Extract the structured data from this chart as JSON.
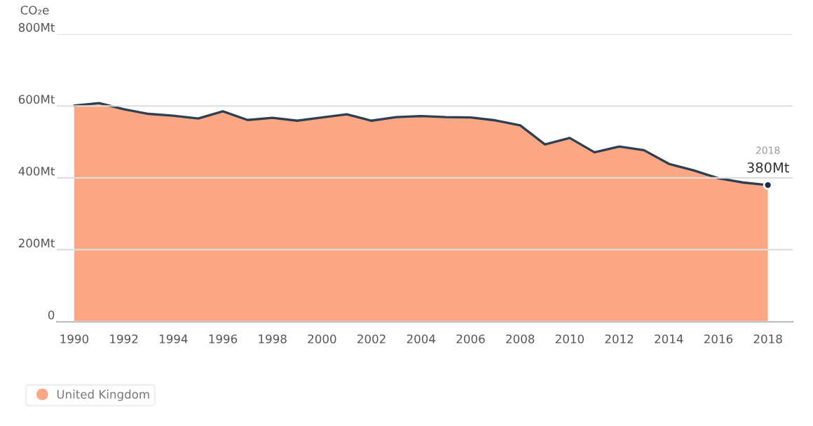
{
  "chart_data": {
    "type": "area",
    "ylabel": "CO₂e",
    "x": [
      1990,
      1991,
      1992,
      1993,
      1994,
      1995,
      1996,
      1997,
      1998,
      1999,
      2000,
      2001,
      2002,
      2003,
      2004,
      2005,
      2006,
      2007,
      2008,
      2009,
      2010,
      2011,
      2012,
      2013,
      2014,
      2015,
      2016,
      2017,
      2018
    ],
    "series": [
      {
        "name": "United Kingdom",
        "color": "#fca784",
        "values": [
          601,
          608,
          591,
          578,
          573,
          565,
          585,
          561,
          567,
          559,
          568,
          577,
          559,
          569,
          572,
          569,
          568,
          560,
          546,
          493,
          511,
          471,
          487,
          477,
          439,
          421,
          399,
          387,
          380
        ]
      }
    ],
    "xlim": [
      1989.3,
      2019
    ],
    "xticks": [
      1990,
      1992,
      1994,
      1996,
      1998,
      2000,
      2002,
      2004,
      2006,
      2008,
      2010,
      2012,
      2014,
      2016,
      2018
    ],
    "ylim": [
      0,
      800
    ],
    "yticks": [
      0,
      {
        "value": 200,
        "label": "200Mt"
      },
      {
        "value": 400,
        "label": "400Mt"
      },
      {
        "value": 600,
        "label": "600Mt"
      },
      {
        "value": 800,
        "label": "800Mt"
      }
    ],
    "grid": "y",
    "legend": "bottom left",
    "annotations": [
      {
        "text": "380Mt",
        "x": 2018,
        "y": 380
      },
      "2018"
    ]
  }
}
